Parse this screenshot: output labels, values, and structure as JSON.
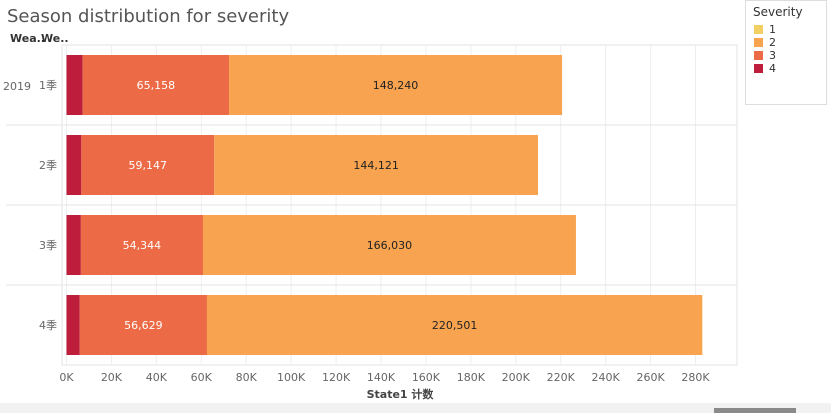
{
  "title": "Season distribution for severity",
  "header_cols": [
    "Wea..",
    "We.."
  ],
  "legend": {
    "title": "Severity",
    "items": [
      {
        "label": "1",
        "color": "#f1cf63"
      },
      {
        "label": "2",
        "color": "#f7a34f"
      },
      {
        "label": "3",
        "color": "#ec6a45"
      },
      {
        "label": "4",
        "color": "#be1e3c"
      }
    ]
  },
  "chart_data": {
    "type": "bar",
    "orientation": "horizontal",
    "stacked": true,
    "title": "Season distribution for severity",
    "xlabel": "State1 计数",
    "ylabel": "",
    "year_label": "2019",
    "categories": [
      "1季",
      "2季",
      "3季",
      "4季"
    ],
    "xlim": [
      0,
      290000
    ],
    "xticks": [
      0,
      20000,
      40000,
      60000,
      80000,
      100000,
      120000,
      140000,
      160000,
      180000,
      200000,
      220000,
      240000,
      260000,
      280000
    ],
    "xtick_labels": [
      "0K",
      "20K",
      "40K",
      "60K",
      "80K",
      "100K",
      "120K",
      "140K",
      "160K",
      "180K",
      "200K",
      "220K",
      "240K",
      "260K",
      "280K"
    ],
    "grid": true,
    "legend_position": "right",
    "series": [
      {
        "name": "4",
        "color": "#be1e3c",
        "values": [
          7200,
          6600,
          6400,
          5900
        ],
        "labels": [
          "",
          "",
          "",
          ""
        ]
      },
      {
        "name": "3",
        "color": "#ec6a45",
        "values": [
          65158,
          59147,
          54344,
          56629
        ],
        "labels": [
          "65,158",
          "59,147",
          "54,344",
          "56,629"
        ]
      },
      {
        "name": "2",
        "color": "#f7a34f",
        "values": [
          148240,
          144121,
          166030,
          220501
        ],
        "labels": [
          "148,240",
          "144,121",
          "166,030",
          "220,501"
        ]
      },
      {
        "name": "1",
        "color": "#f1cf63",
        "values": [
          0,
          0,
          0,
          0
        ],
        "labels": [
          "",
          "",
          "",
          ""
        ]
      }
    ]
  }
}
